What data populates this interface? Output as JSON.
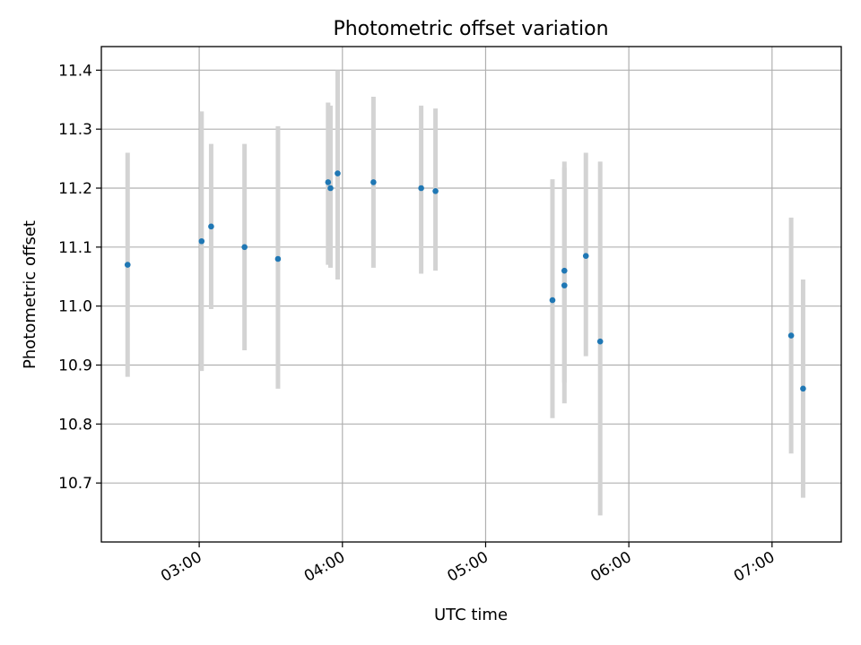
{
  "chart_data": {
    "type": "scatter",
    "title": "Photometric offset variation",
    "xlabel": "UTC time",
    "ylabel": "Photometric offset",
    "x_ticks": [
      "03:00",
      "04:00",
      "05:00",
      "06:00",
      "07:00"
    ],
    "y_ticks": [
      10.7,
      10.8,
      10.9,
      11.0,
      11.1,
      11.2,
      11.3,
      11.4
    ],
    "xlim": [
      "02:19",
      "07:29"
    ],
    "ylim": [
      10.6,
      11.44
    ],
    "grid": true,
    "points": [
      {
        "t": "02:30",
        "y": 11.07,
        "lo": 10.88,
        "hi": 11.26
      },
      {
        "t": "03:01",
        "y": 11.11,
        "lo": 10.89,
        "hi": 11.33
      },
      {
        "t": "03:05",
        "y": 11.135,
        "lo": 10.995,
        "hi": 11.275
      },
      {
        "t": "03:19",
        "y": 11.1,
        "lo": 10.925,
        "hi": 11.275
      },
      {
        "t": "03:33",
        "y": 11.08,
        "lo": 10.86,
        "hi": 11.305
      },
      {
        "t": "03:54",
        "y": 11.21,
        "lo": 11.07,
        "hi": 11.345
      },
      {
        "t": "03:55",
        "y": 11.2,
        "lo": 11.065,
        "hi": 11.34
      },
      {
        "t": "03:58",
        "y": 11.225,
        "lo": 11.045,
        "hi": 11.4
      },
      {
        "t": "04:13",
        "y": 11.21,
        "lo": 11.065,
        "hi": 11.355
      },
      {
        "t": "04:33",
        "y": 11.2,
        "lo": 11.055,
        "hi": 11.34
      },
      {
        "t": "04:39",
        "y": 11.195,
        "lo": 11.06,
        "hi": 11.335
      },
      {
        "t": "05:28",
        "y": 11.01,
        "lo": 10.81,
        "hi": 11.215
      },
      {
        "t": "05:33",
        "y": 11.035,
        "lo": 10.87,
        "hi": 11.235
      },
      {
        "t": "05:33",
        "y": 11.06,
        "lo": 10.835,
        "hi": 11.245
      },
      {
        "t": "05:42",
        "y": 11.085,
        "lo": 10.915,
        "hi": 11.26
      },
      {
        "t": "05:48",
        "y": 10.94,
        "lo": 10.645,
        "hi": 11.245
      },
      {
        "t": "07:08",
        "y": 10.95,
        "lo": 10.75,
        "hi": 11.15
      },
      {
        "t": "07:13",
        "y": 10.86,
        "lo": 10.675,
        "hi": 11.045
      }
    ],
    "colors": {
      "point": "#1f77b4",
      "errorbar": "#d3d3d3",
      "grid": "#b0b0b0"
    }
  }
}
